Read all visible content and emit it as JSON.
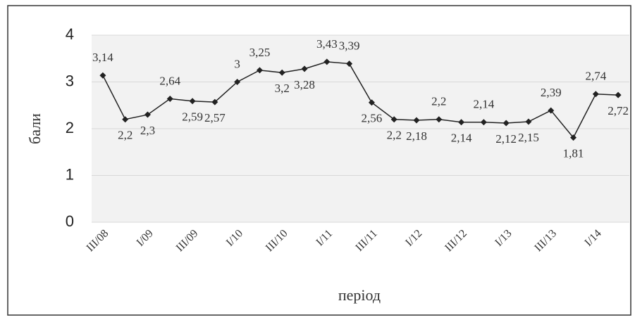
{
  "chart_data": {
    "type": "line",
    "ylabel": "бали",
    "xlabel": "період",
    "categories": [
      "III/08",
      null,
      "I/09",
      null,
      "III/09",
      null,
      "I/10",
      null,
      "III/10",
      null,
      "I/11",
      null,
      "III/11",
      null,
      "I/12",
      null,
      "III/12",
      null,
      "I/13",
      null,
      "III/13",
      null,
      "I/14",
      null
    ],
    "series": [
      {
        "name": "бали",
        "color": "#222222",
        "values": [
          3.14,
          2.2,
          2.3,
          2.64,
          2.59,
          2.57,
          3,
          3.25,
          3.2,
          3.28,
          3.43,
          3.39,
          2.56,
          2.2,
          2.18,
          2.2,
          2.14,
          2.14,
          2.12,
          2.15,
          2.39,
          1.81,
          2.74,
          2.72
        ],
        "value_labels": [
          "3,14",
          "2,2",
          "2,3",
          "2,64",
          "2,59",
          "2,57",
          "3",
          "3,25",
          "3,2",
          "3,28",
          "3,43",
          "3,39",
          "2,56",
          "2,2",
          "2,18",
          "2,2",
          "2,14",
          "2,14",
          "2,12",
          "2,15",
          "2,39",
          "1,81",
          "2,74",
          "2,72"
        ]
      }
    ],
    "ylim": [
      0,
      4
    ],
    "yticks": [
      0,
      1,
      2,
      3,
      4
    ],
    "grid": true
  }
}
